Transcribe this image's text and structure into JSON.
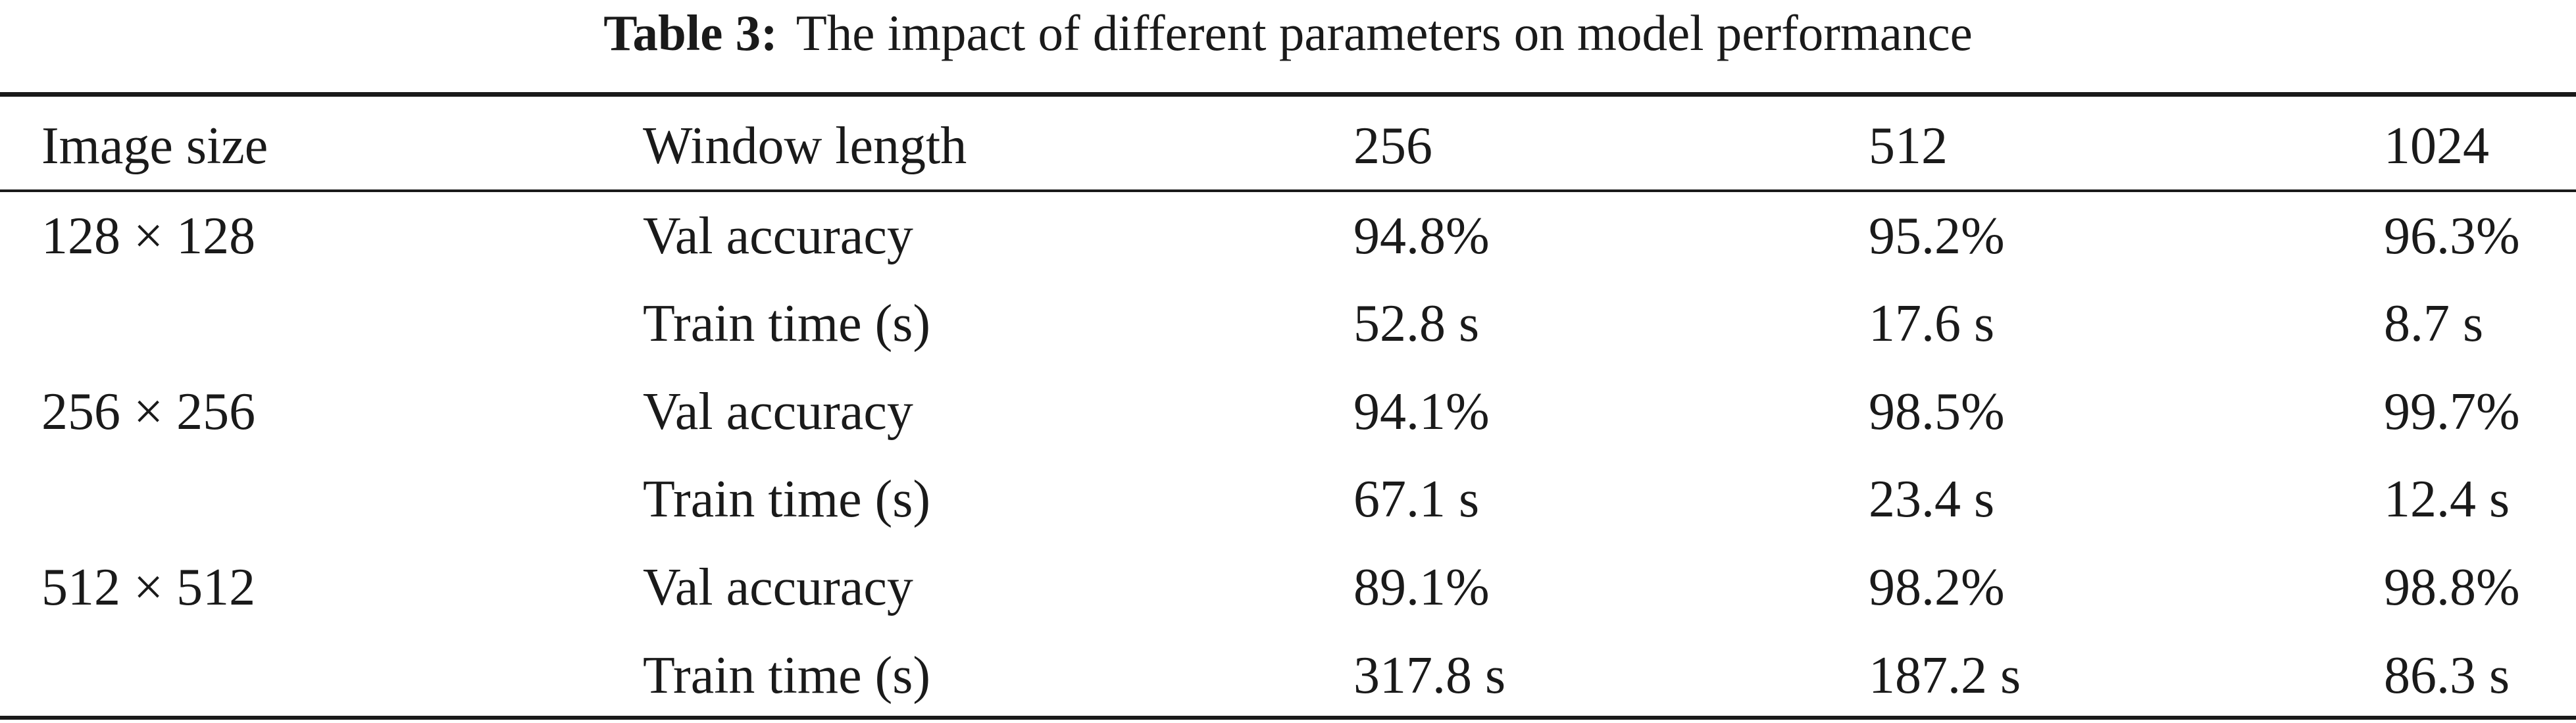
{
  "caption": {
    "label": "Table 3:",
    "text": "The impact of different parameters on model performance"
  },
  "table": {
    "headers": [
      "Image size",
      "Window length",
      "256",
      "512",
      "1024"
    ],
    "rows": [
      [
        "128 × 128",
        "Val accuracy",
        "94.8%",
        "95.2%",
        "96.3%"
      ],
      [
        "",
        "Train time (s)",
        "52.8 s",
        "17.6 s",
        "8.7 s"
      ],
      [
        "256 × 256",
        "Val accuracy",
        "94.1%",
        "98.5%",
        "99.7%"
      ],
      [
        "",
        "Train time (s)",
        "67.1 s",
        "23.4 s",
        "12.4 s"
      ],
      [
        "512 × 512",
        "Val accuracy",
        "89.1%",
        "98.2%",
        "98.8%"
      ],
      [
        "",
        "Train time (s)",
        "317.8 s",
        "187.2 s",
        "86.3 s"
      ]
    ]
  }
}
